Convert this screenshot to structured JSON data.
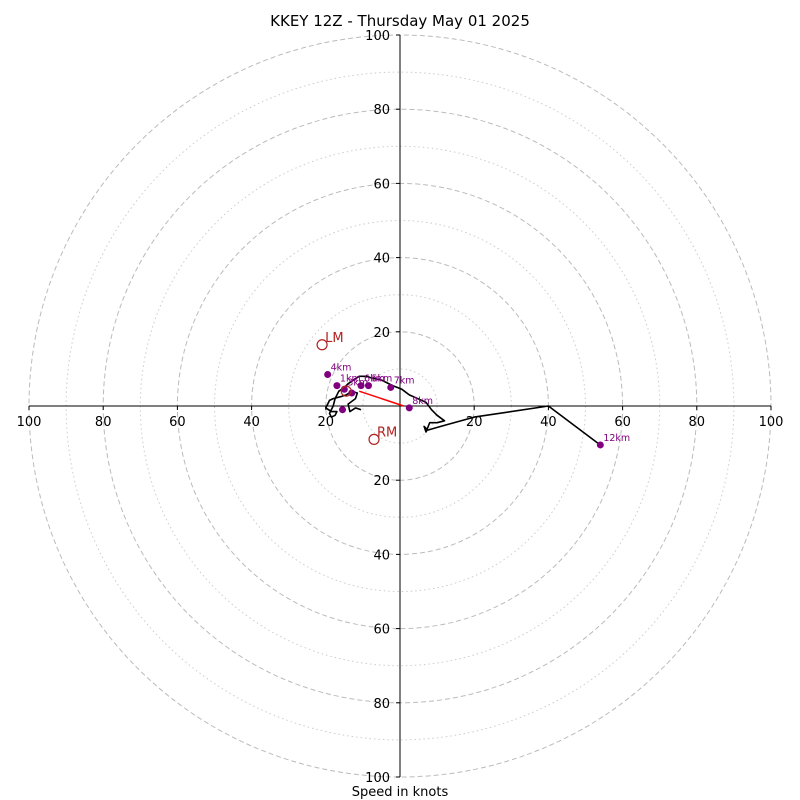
{
  "chart_data": {
    "type": "line",
    "title": "KKEY 12Z - Thursday May 01 2025",
    "xlabel": "Speed in knots",
    "ticks_positive_side": [
      "20",
      "40",
      "60",
      "80",
      "100"
    ],
    "ticks_negative_side": [
      "20",
      "40",
      "60",
      "80",
      "100"
    ],
    "range": 100,
    "rings_major": [
      20,
      40,
      60,
      80,
      100
    ],
    "rings_minor": [
      10,
      30,
      50,
      70,
      90
    ],
    "grid": true,
    "colors": {
      "hodograph": "#000000",
      "height_markers": "#800080",
      "storm_motion": "#b22222",
      "shear_vector": "#ff0000",
      "grid": "#bbbbbb",
      "axes": "#000000"
    },
    "hodograph": {
      "u": [
        -10.5,
        -12,
        -13.5,
        -14,
        -12,
        -11.5,
        -13,
        -14.5,
        -16,
        -18,
        -19,
        -19.5,
        -20,
        -18.5,
        -17,
        -17.5,
        -18.5,
        -19,
        -18,
        -17.5,
        -16.5,
        -15,
        -14,
        -12.5,
        -11,
        -9,
        -7.5,
        -5,
        -2,
        0.5,
        2.5,
        7,
        8.5,
        10,
        12,
        10,
        8,
        7,
        6.5,
        7.5,
        11,
        20,
        40,
        54
      ],
      "v": [
        -1,
        -0.5,
        -1.5,
        0.5,
        2,
        3.5,
        4,
        3,
        2.5,
        2,
        1.5,
        0.5,
        -0.5,
        -1.5,
        -1.5,
        -2.5,
        -3,
        -2,
        0,
        2,
        4,
        5,
        6,
        7,
        8,
        8,
        7.5,
        7,
        5.5,
        4.5,
        3,
        1,
        -1,
        -2.5,
        -4,
        -4.5,
        -4.5,
        -7,
        -5.5,
        -6.5,
        -5.5,
        -3,
        0,
        -10.5
      ]
    },
    "height_markers": [
      {
        "label": "1km",
        "u": -17,
        "v": 5.5
      },
      {
        "label": "",
        "u": -13,
        "v": 3.5
      },
      {
        "label": "3km",
        "u": -15,
        "v": 4.5
      },
      {
        "label": "4km",
        "u": -19.5,
        "v": 8.5
      },
      {
        "label": "5km",
        "u": -8.5,
        "v": 5.5
      },
      {
        "label": "6km",
        "u": -10.5,
        "v": 5.5
      },
      {
        "label": "7km",
        "u": -2.5,
        "v": 5
      },
      {
        "label": "8km",
        "u": 2.5,
        "v": -0.5
      },
      {
        "label": "12km",
        "u": 54,
        "v": -10.5
      },
      {
        "label": "",
        "u": -15.5,
        "v": -1
      }
    ],
    "storm_motion": [
      {
        "label": "LM",
        "u": -21,
        "v": 16.5
      },
      {
        "label": "RM",
        "u": -7,
        "v": -9
      },
      {
        "label": "",
        "u": -14.5,
        "v": 4
      }
    ],
    "shear_vector": {
      "from": {
        "u": -11,
        "v": 4
      },
      "to": {
        "u": 1,
        "v": 0
      }
    }
  }
}
